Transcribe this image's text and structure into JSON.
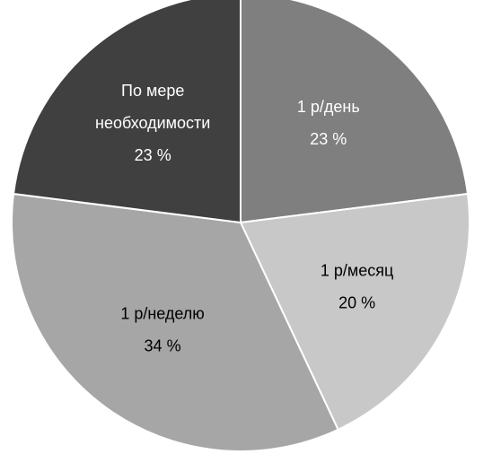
{
  "chart_data": {
    "type": "pie",
    "start_angle_deg": 0,
    "direction": "clockwise",
    "slices": [
      {
        "label": "1 р/день",
        "value": 23,
        "pct_label": "23 %",
        "color": "#7f7f7f",
        "text_color": "#ffffff"
      },
      {
        "label": "1 р/месяц",
        "value": 20,
        "pct_label": "20 %",
        "color": "#c8c8c8",
        "text_color": "#000000"
      },
      {
        "label": "1 р/неделю",
        "value": 34,
        "pct_label": "34 %",
        "color": "#a6a6a6",
        "text_color": "#000000"
      },
      {
        "label": "По мере необходимости",
        "label_lines": [
          "По мере",
          "необходимости"
        ],
        "value": 23,
        "pct_label": "23 %",
        "color": "#404040",
        "text_color": "#ffffff"
      }
    ]
  }
}
